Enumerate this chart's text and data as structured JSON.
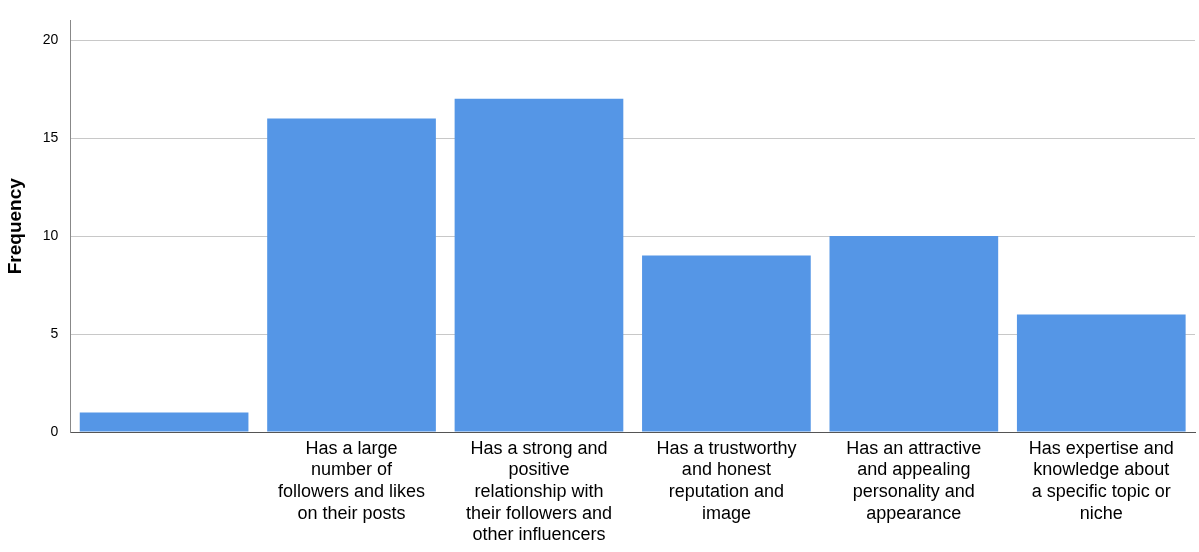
{
  "chart_data": {
    "type": "bar",
    "ylabel": "Frequency",
    "categories": [
      null,
      "Has a large number of followers and likes on their posts",
      "Has a strong and positive relationship with their followers and other influencers",
      "Has a trustworthy and honest reputation and image",
      "Has an attractive and appealing personality and appearance",
      "Has expertise and knowledge about a specific topic or niche"
    ],
    "values": [
      1,
      16,
      17,
      9,
      10,
      6
    ],
    "color": "#5596e6",
    "ylim": [
      0,
      21
    ],
    "yticks": [
      0,
      5,
      10,
      15,
      20
    ],
    "grid": "y",
    "legend": false
  }
}
